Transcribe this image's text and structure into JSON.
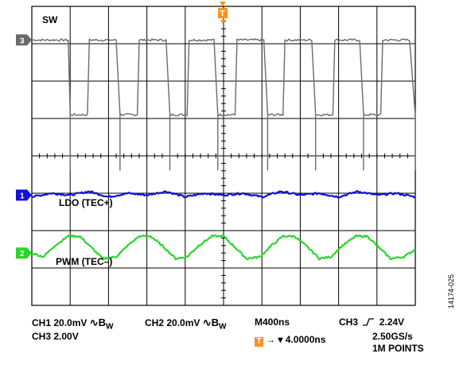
{
  "channels": [
    {
      "label": "SW",
      "marker": "3",
      "color": "#6b6b6b"
    },
    {
      "label": "LDO (TEC+)",
      "marker": "1",
      "color": "#1010d8"
    },
    {
      "label": "PWM (TEC–)",
      "marker": "2",
      "color": "#2ad62a"
    }
  ],
  "trigger_marker": "T",
  "readout": {
    "ch1": "CH1 20.0mV",
    "ch2": "CH2 20.0mV",
    "bw": "B",
    "bw_sub": "W",
    "bw_symbol": "∿",
    "ch3_scale": "CH3 2.00V",
    "timebase": "M400ns",
    "trigger_source": "CH3",
    "trigger_slope_symbol": "⎍",
    "trigger_level": "2.24V",
    "trigger_position": "→ ▾ 4.0000ns",
    "sample_rate": "2.50GS/s",
    "record_length": "1M POINTS"
  },
  "figure_id": "14174-025",
  "colors": {
    "grid": "#000000",
    "trigger": "#f7941d",
    "sw": "#6b6b6b",
    "ldo": "#1010d8",
    "pwm": "#2ad62a"
  },
  "chart_data": {
    "type": "line",
    "grid": {
      "horizontal_divisions": 10,
      "vertical_divisions": 8
    },
    "series": [
      {
        "name": "SW",
        "x_unit": "divisions",
        "y_unit": "divisions",
        "x": [
          0,
          0.95,
          1.0,
          1.45,
          1.5,
          2.2,
          2.3,
          2.75,
          2.8,
          3.5,
          3.6,
          4.05,
          4.1,
          4.75,
          4.85,
          5.3,
          5.35,
          6.05,
          6.15,
          6.55,
          6.6,
          7.3,
          7.4,
          7.85,
          7.9,
          8.55,
          8.65,
          9.1,
          9.15,
          9.85,
          10
        ],
        "y": [
          7.1,
          7.1,
          5.1,
          5.1,
          7.1,
          7.1,
          5.1,
          5.1,
          7.1,
          7.1,
          5.1,
          5.1,
          7.1,
          7.1,
          5.1,
          5.1,
          7.1,
          7.1,
          5.1,
          5.1,
          7.1,
          7.1,
          5.1,
          5.1,
          7.1,
          7.1,
          5.1,
          5.1,
          7.1,
          7.1,
          5.1
        ]
      },
      {
        "name": "LDO (TEC+)",
        "x_unit": "divisions",
        "y_unit": "divisions",
        "x": [
          0,
          0.5,
          1.0,
          1.5,
          2.0,
          2.5,
          3.0,
          3.5,
          4.0,
          4.5,
          5.0,
          5.5,
          6.0,
          6.5,
          7.0,
          7.5,
          8.0,
          8.5,
          9.0,
          9.5,
          10
        ],
        "y": [
          2.9,
          3.0,
          2.95,
          3.05,
          2.9,
          3.0,
          2.95,
          3.05,
          2.9,
          3.0,
          2.95,
          3.0,
          2.9,
          3.05,
          2.95,
          3.0,
          2.9,
          3.05,
          2.95,
          3.0,
          2.9
        ]
      },
      {
        "name": "PWM (TEC–)",
        "x_unit": "divisions",
        "y_unit": "divisions",
        "x": [
          0,
          0.3,
          0.6,
          0.95,
          1.25,
          1.55,
          1.85,
          2.2,
          2.5,
          2.8,
          3.1,
          3.45,
          3.75,
          4.05,
          4.35,
          4.7,
          5.0,
          5.3,
          5.6,
          5.95,
          6.25,
          6.55,
          6.85,
          7.2,
          7.5,
          7.8,
          8.1,
          8.45,
          8.75,
          9.05,
          9.35,
          9.7,
          10
        ],
        "y": [
          1.4,
          1.3,
          1.6,
          1.85,
          1.85,
          1.55,
          1.25,
          1.3,
          1.6,
          1.85,
          1.85,
          1.55,
          1.25,
          1.3,
          1.6,
          1.85,
          1.85,
          1.55,
          1.25,
          1.3,
          1.6,
          1.85,
          1.85,
          1.55,
          1.25,
          1.3,
          1.6,
          1.85,
          1.85,
          1.55,
          1.25,
          1.3,
          1.5
        ]
      }
    ]
  }
}
